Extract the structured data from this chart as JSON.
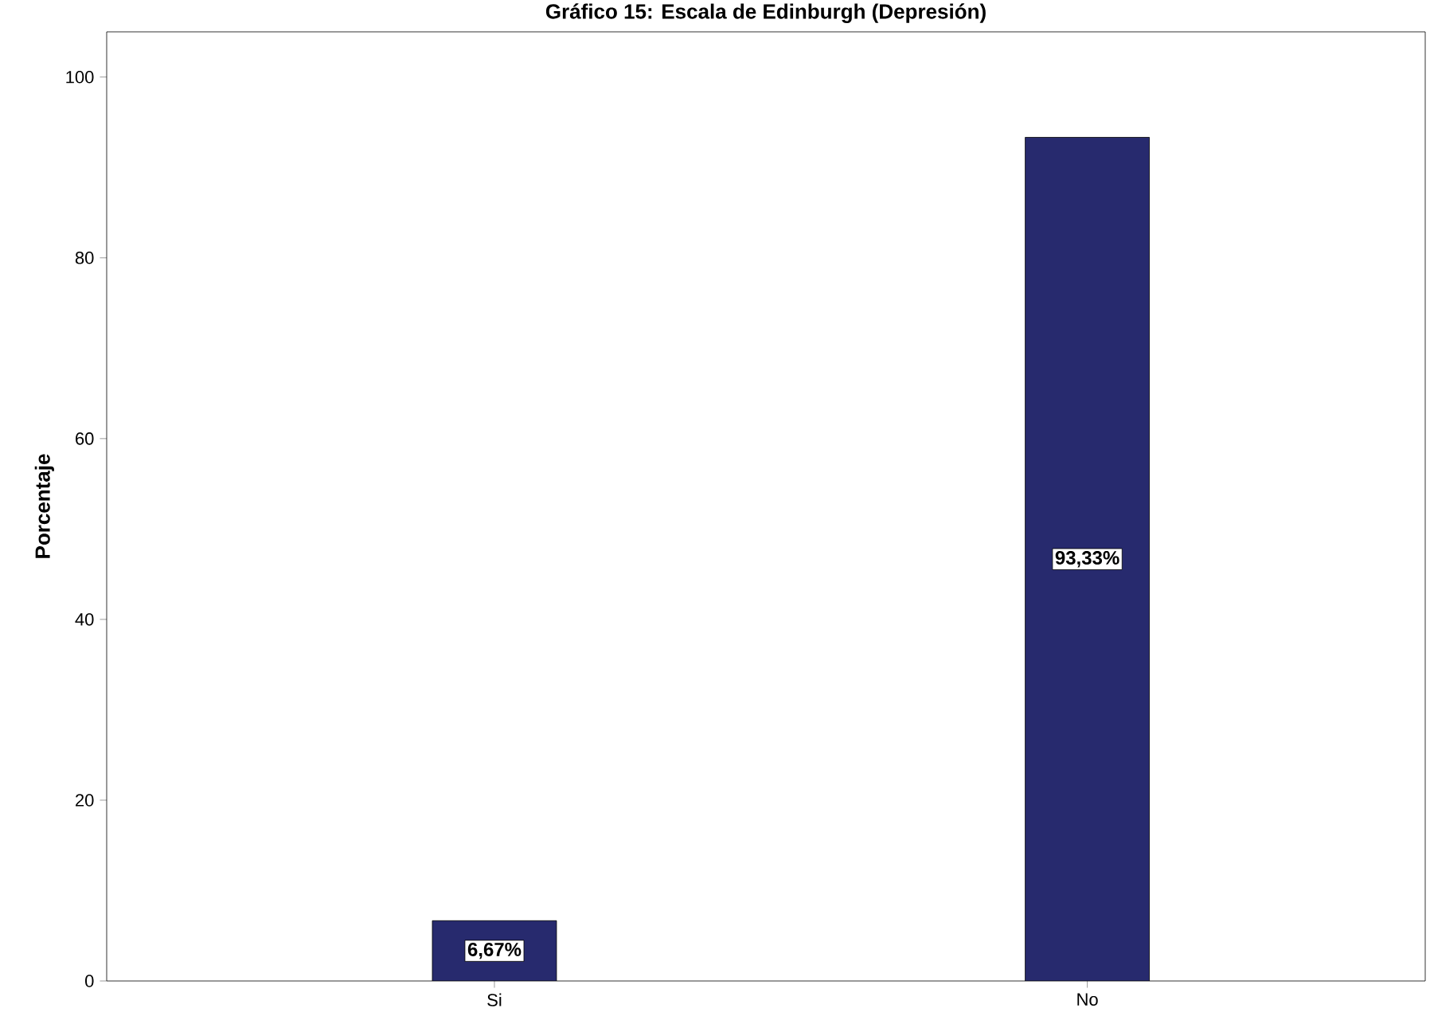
{
  "chart_data": {
    "type": "bar",
    "title": "Gráfico 15: Escala de Edinburgh (Depresión)",
    "ylabel": "Porcentaje",
    "categories": [
      "Si",
      "No"
    ],
    "values": [
      6.67,
      93.33
    ],
    "value_labels": [
      "6,67%",
      "93,33%"
    ],
    "color": "#272a6e",
    "ylim": [
      0,
      105
    ],
    "yticks": [
      0,
      20,
      40,
      60,
      80,
      100
    ],
    "grid": false
  }
}
